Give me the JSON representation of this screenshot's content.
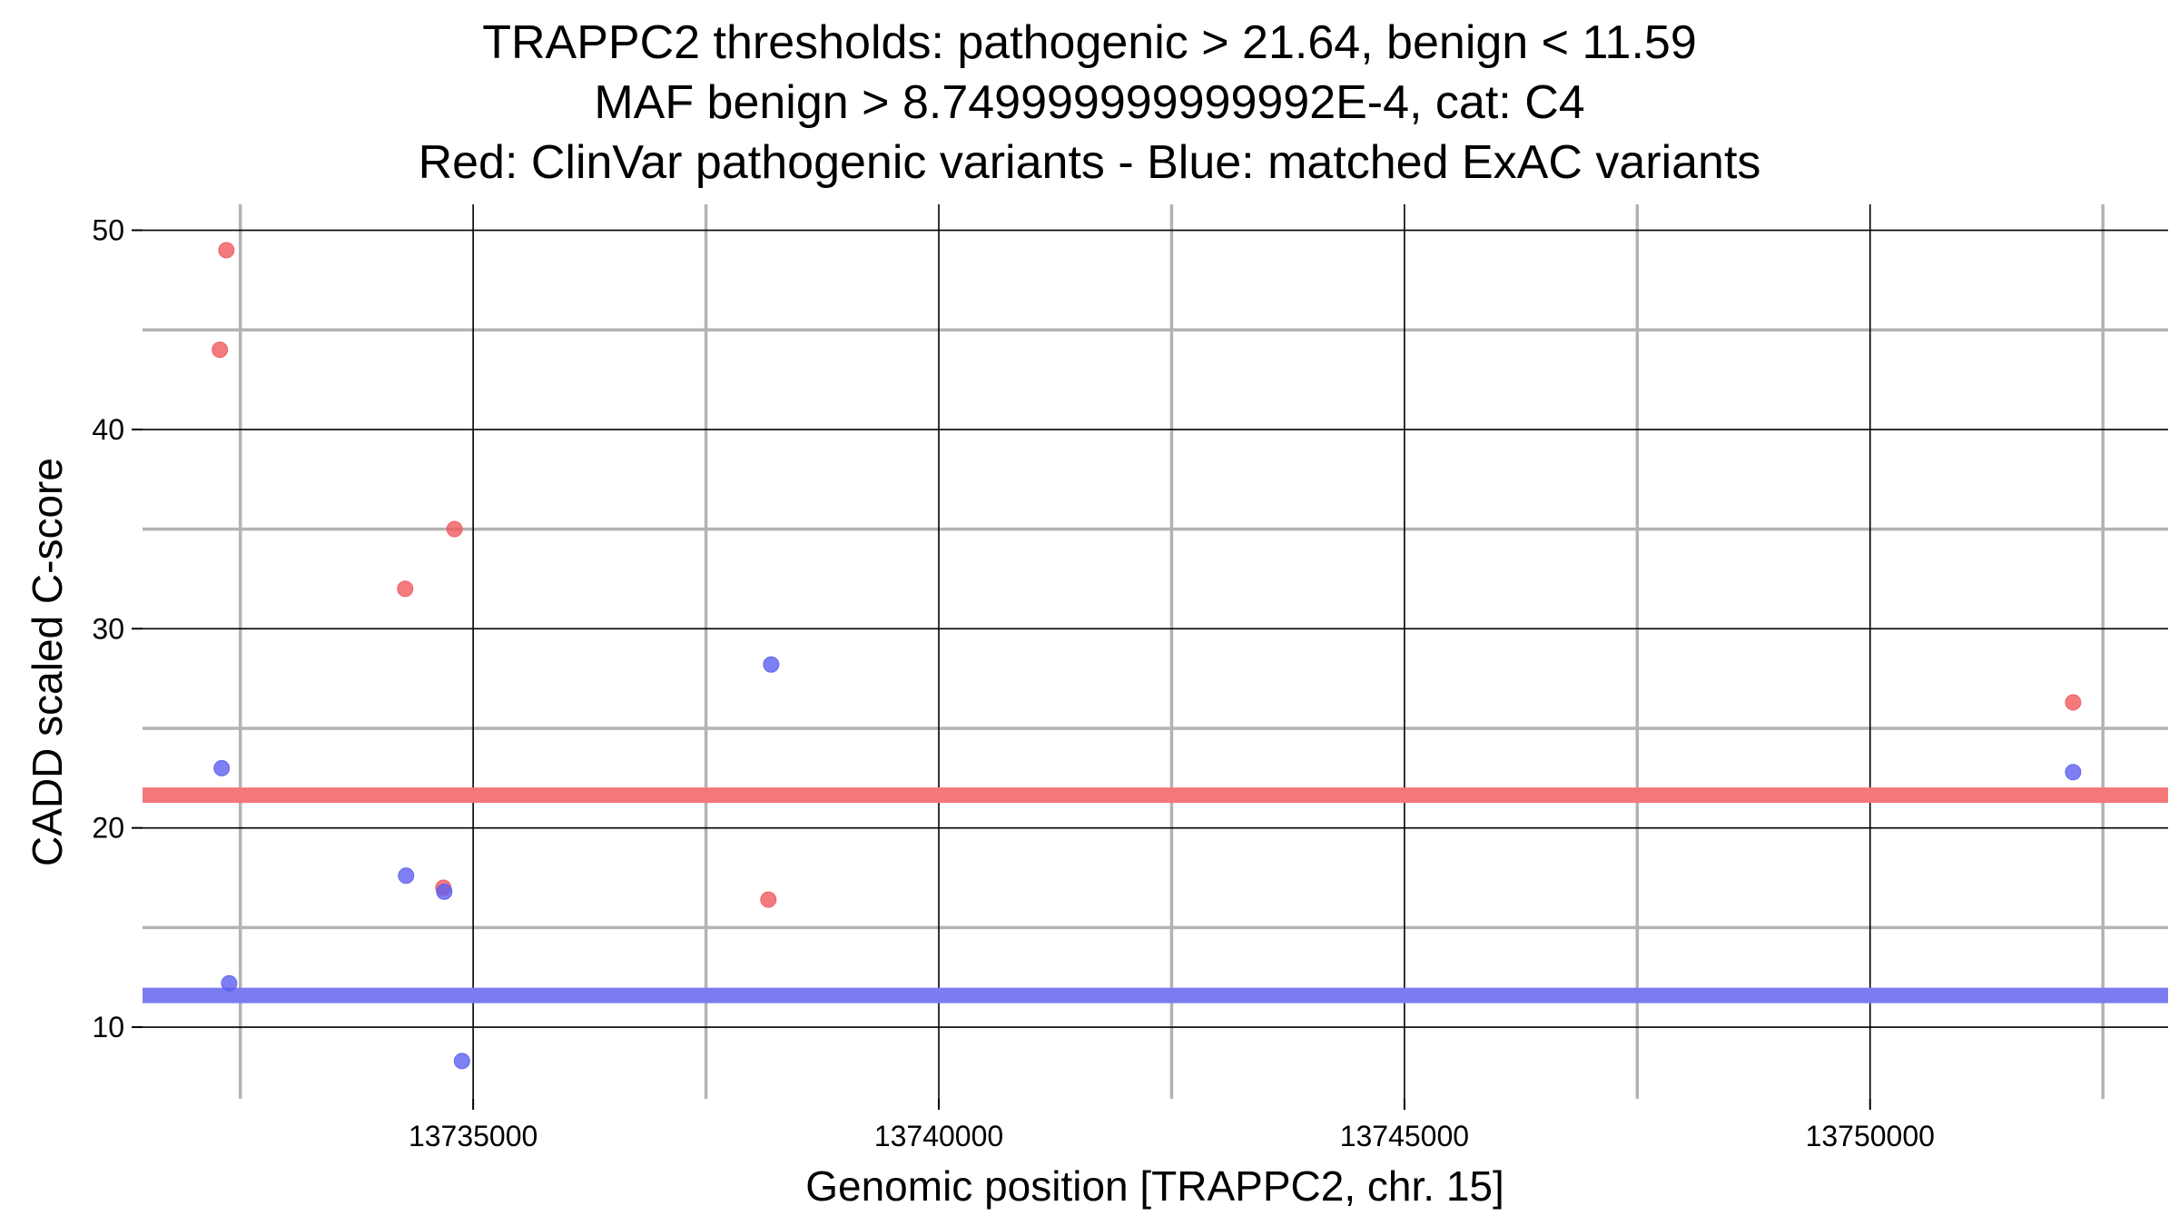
{
  "chart_data": {
    "type": "scatter",
    "title": [
      "TRAPPC2 thresholds: pathogenic > 21.64, benign < 11.59",
      "MAF benign > 8.749999999999992E-4, cat: C4",
      "Red: ClinVar pathogenic variants - Blue: matched ExAC variants"
    ],
    "xlabel": "Genomic position [TRAPPC2, chr. 15]",
    "ylabel": "CADD scaled C-score",
    "xlim": [
      13731450,
      13753200
    ],
    "ylim": [
      6.4,
      51.3
    ],
    "xticks": [
      13735000,
      13740000,
      13745000,
      13750000
    ],
    "xtick_labels": [
      "13735000",
      "13740000",
      "13745000",
      "13750000"
    ],
    "yticks": [
      10,
      20,
      30,
      40,
      50
    ],
    "ytick_labels": [
      "10",
      "20",
      "30",
      "40",
      "50"
    ],
    "grid": true,
    "thresholds": [
      {
        "name": "pathogenic",
        "value": 21.64,
        "color": "#f4777a"
      },
      {
        "name": "benign",
        "value": 11.59,
        "color": "#7b7cf2"
      }
    ],
    "series": [
      {
        "color": "#f05a5e",
        "points": [
          {
            "x": 13732350,
            "y": 49.0
          },
          {
            "x": 13732280,
            "y": 44.0
          },
          {
            "x": 13734800,
            "y": 35.0
          },
          {
            "x": 13734270,
            "y": 32.0
          },
          {
            "x": 13734680,
            "y": 17.0
          },
          {
            "x": 13738170,
            "y": 16.4
          },
          {
            "x": 13752180,
            "y": 26.3
          }
        ]
      },
      {
        "color": "#5c5ff0",
        "points": [
          {
            "x": 13732300,
            "y": 23.0
          },
          {
            "x": 13732380,
            "y": 12.2
          },
          {
            "x": 13734280,
            "y": 17.6
          },
          {
            "x": 13734690,
            "y": 16.8
          },
          {
            "x": 13734880,
            "y": 8.3
          },
          {
            "x": 13738200,
            "y": 28.2
          },
          {
            "x": 13752180,
            "y": 22.8
          }
        ]
      }
    ]
  }
}
